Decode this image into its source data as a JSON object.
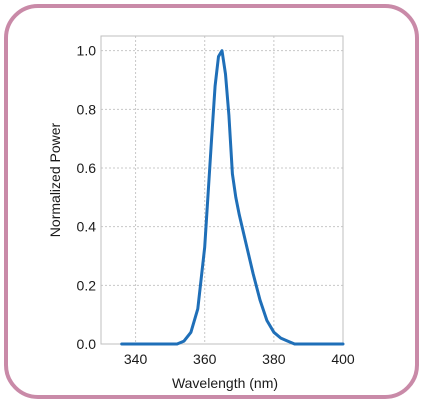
{
  "colors": {
    "frame": "#c98aa8",
    "line": "#1f6fb8",
    "grid": "#c8c8c8"
  },
  "chart_data": {
    "type": "line",
    "title": "",
    "xlabel": "Wavelength (nm)",
    "ylabel": "Normalized Power",
    "xlim": [
      330,
      400
    ],
    "ylim": [
      0,
      1.05
    ],
    "xticks": [
      340,
      360,
      380,
      400
    ],
    "xtick_labels": [
      "340",
      "360",
      "380",
      "400"
    ],
    "yticks": [
      0,
      0.2,
      0.4,
      0.6,
      0.8,
      1.0
    ],
    "ytick_labels": [
      "0.0",
      "0.2",
      "0.4",
      "0.6",
      "0.8",
      "1.0"
    ],
    "grid": true,
    "series": [
      {
        "x": [
          336,
          352,
          354,
          356,
          358,
          360,
          362,
          363,
          364,
          365,
          366,
          367,
          368,
          369,
          370,
          372,
          374,
          376,
          378,
          380,
          382,
          384,
          386,
          390,
          400
        ],
        "y": [
          0.0,
          0.0,
          0.01,
          0.04,
          0.12,
          0.33,
          0.7,
          0.88,
          0.98,
          1.0,
          0.92,
          0.78,
          0.58,
          0.5,
          0.44,
          0.34,
          0.24,
          0.15,
          0.08,
          0.04,
          0.02,
          0.01,
          0.0,
          0.0,
          0.0
        ]
      }
    ]
  }
}
